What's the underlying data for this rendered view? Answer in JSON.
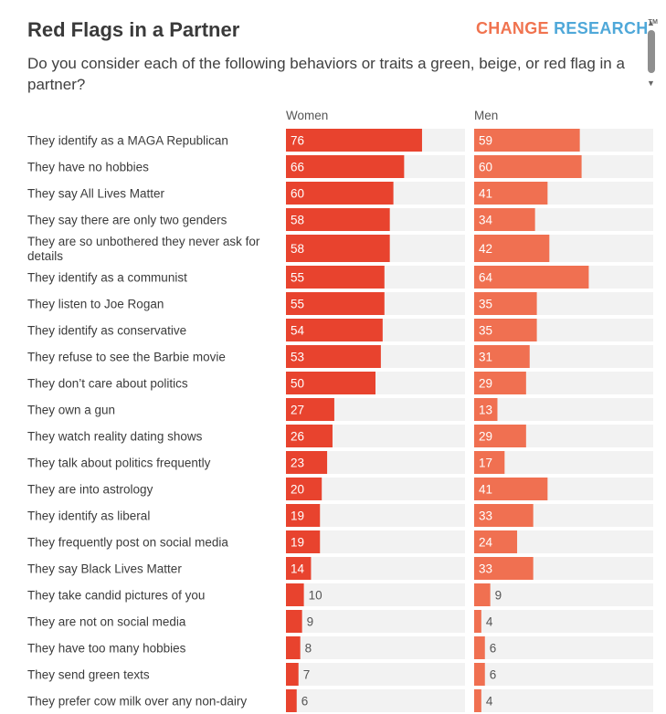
{
  "header": {
    "title": "Red Flags in a Partner",
    "subtitle": "Do you consider each of the following behaviors or traits a green, beige, or red flag in a partner?",
    "logo_word1": "CHANGE",
    "logo_word2": "RESEARCH",
    "logo_tm": "TM"
  },
  "colors": {
    "women_bar": "#e8432e",
    "men_bar": "#f07051",
    "track": "#f2f2f2"
  },
  "chart_data": {
    "type": "bar",
    "orientation": "horizontal",
    "title": "Red Flags in a Partner",
    "subtitle": "Do you consider each of the following behaviors or traits a green, beige, or red flag in a partner?",
    "xlim": [
      0,
      100
    ],
    "categories": [
      "They identify as a MAGA Republican",
      "They have no hobbies",
      "They say All Lives Matter",
      "They say there are only two genders",
      "They are so unbothered they never ask for details",
      "They identify as a communist",
      "They listen to Joe Rogan",
      "They identify as conservative",
      "They refuse to see the Barbie movie",
      "They don’t care about politics",
      "They own a gun",
      "They watch reality dating shows",
      "They talk about politics frequently",
      "They are into astrology",
      "They identify as liberal",
      "They frequently post on social media",
      "They say Black Lives Matter",
      "They take candid pictures of you",
      "They are not on social media",
      "They have too many hobbies",
      "They send green texts",
      "They prefer cow milk over any non-dairy"
    ],
    "series": [
      {
        "name": "Women",
        "values": [
          76,
          66,
          60,
          58,
          58,
          55,
          55,
          54,
          53,
          50,
          27,
          26,
          23,
          20,
          19,
          19,
          14,
          10,
          9,
          8,
          7,
          6
        ]
      },
      {
        "name": "Men",
        "values": [
          59,
          60,
          41,
          34,
          42,
          64,
          35,
          35,
          31,
          29,
          13,
          29,
          17,
          41,
          33,
          24,
          33,
          9,
          4,
          6,
          6,
          4
        ]
      }
    ]
  }
}
